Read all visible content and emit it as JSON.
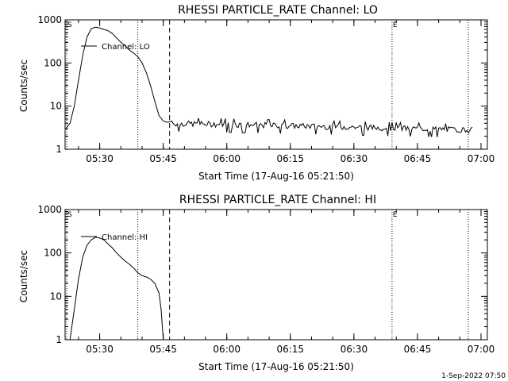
{
  "footer_date": "1-Sep-2022 07:50",
  "chart_data": [
    {
      "type": "line",
      "title": "RHESSI PARTICLE_RATE Channel: LO",
      "xlabel": "Start Time (17-Aug-16 05:21:50)",
      "ylabel": "Counts/sec",
      "y_scale": "log",
      "ylim": [
        1,
        1000
      ],
      "xlim": [
        "05:21:50",
        "07:01:30"
      ],
      "x_ticks": [
        "05:30",
        "05:45",
        "06:00",
        "06:15",
        "06:30",
        "06:45",
        "07:00"
      ],
      "y_ticks": [
        "1",
        "10",
        "100",
        "1000"
      ],
      "legend": "Channel: LO",
      "markers": [
        {
          "time": "05:21:50",
          "style": "dotted",
          "label": "S"
        },
        {
          "time": "05:39:00",
          "style": "dotted",
          "label": ""
        },
        {
          "time": "05:46:30",
          "style": "dashed",
          "label": ""
        },
        {
          "time": "06:39:00",
          "style": "dotted",
          "label": "E"
        },
        {
          "time": "06:57:00",
          "style": "dotted",
          "label": ""
        }
      ],
      "series": [
        {
          "x": [
            "05:22:00",
            "05:23:00",
            "05:24:00",
            "05:25:00",
            "05:26:00",
            "05:27:00",
            "05:28:00",
            "05:29:00",
            "05:30:00",
            "05:31:00",
            "05:32:00",
            "05:33:00",
            "05:34:00",
            "05:35:00",
            "05:36:00",
            "05:37:00",
            "05:38:00",
            "05:39:00",
            "05:40:00",
            "05:41:00",
            "05:42:00",
            "05:43:00",
            "05:44:00",
            "05:45:00",
            "05:46:00",
            "05:47:00"
          ],
          "y": [
            3,
            4,
            10,
            40,
            150,
            400,
            620,
            680,
            650,
            600,
            560,
            480,
            380,
            300,
            250,
            200,
            170,
            140,
            100,
            60,
            30,
            13,
            6,
            4.5,
            4.2,
            4.5
          ]
        }
      ],
      "noise_floor": {
        "from": "05:47:00",
        "to": "06:58:00",
        "level_start": 4,
        "level_end": 2.8
      }
    },
    {
      "type": "line",
      "title": "RHESSI PARTICLE_RATE Channel: HI",
      "xlabel": "Start Time (17-Aug-16 05:21:50)",
      "ylabel": "Counts/sec",
      "y_scale": "log",
      "ylim": [
        1,
        1000
      ],
      "xlim": [
        "05:21:50",
        "07:01:30"
      ],
      "x_ticks": [
        "05:30",
        "05:45",
        "06:00",
        "06:15",
        "06:30",
        "06:45",
        "07:00"
      ],
      "y_ticks": [
        "1",
        "10",
        "100",
        "1000"
      ],
      "legend": "Channel: HI",
      "markers": [
        {
          "time": "05:21:50",
          "style": "dotted",
          "label": "S"
        },
        {
          "time": "05:39:00",
          "style": "dotted",
          "label": ""
        },
        {
          "time": "05:46:30",
          "style": "dashed",
          "label": ""
        },
        {
          "time": "06:39:00",
          "style": "dotted",
          "label": "E"
        },
        {
          "time": "06:57:00",
          "style": "dotted",
          "label": ""
        }
      ],
      "series": [
        {
          "x": [
            "05:23:00",
            "05:24:00",
            "05:25:00",
            "05:26:00",
            "05:27:00",
            "05:28:00",
            "05:29:00",
            "05:30:00",
            "05:31:00",
            "05:32:00",
            "05:33:00",
            "05:34:00",
            "05:35:00",
            "05:36:00",
            "05:37:00",
            "05:38:00",
            "05:39:00",
            "05:40:00",
            "05:41:00",
            "05:42:00",
            "05:43:00",
            "05:44:00",
            "05:44:30",
            "05:45:00"
          ],
          "y": [
            1,
            5,
            25,
            80,
            150,
            200,
            230,
            220,
            200,
            160,
            130,
            100,
            80,
            65,
            55,
            45,
            35,
            30,
            28,
            25,
            20,
            12,
            5,
            1
          ]
        }
      ]
    }
  ]
}
